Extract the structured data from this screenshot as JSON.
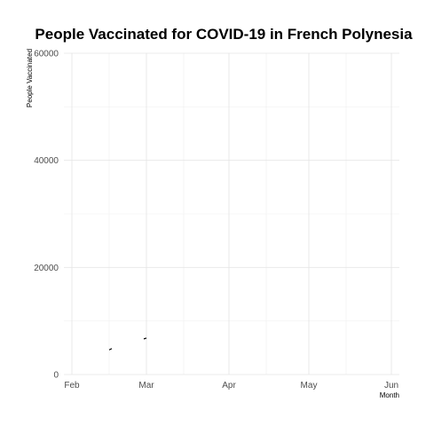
{
  "chart_data": {
    "type": "line",
    "title": "People Vaccinated for COVID-19 in French Polynesia",
    "xlabel": "Month",
    "ylabel": "People Vaccinated",
    "x_axis_type": "date",
    "xlim": [
      "2021-01-29",
      "2021-06-04"
    ],
    "ylim": [
      0,
      60000
    ],
    "x_ticks": [
      {
        "date": "2021-02-01",
        "label": "Feb"
      },
      {
        "date": "2021-03-01",
        "label": "Mar"
      },
      {
        "date": "2021-04-01",
        "label": "Apr"
      },
      {
        "date": "2021-05-01",
        "label": "May"
      },
      {
        "date": "2021-06-01",
        "label": "Jun"
      }
    ],
    "x_minor_ticks": [
      "2021-02-15",
      "2021-03-15",
      "2021-04-15",
      "2021-05-15"
    ],
    "y_ticks": [
      0,
      20000,
      40000,
      60000
    ],
    "y_minor_ticks": [
      10000,
      30000,
      50000
    ],
    "grid": true,
    "legend": "none",
    "series": [
      {
        "color": "#000000",
        "segments": [
          [
            {
              "x": "2021-02-15",
              "y": 4600
            },
            {
              "x": "2021-02-16",
              "y": 4850
            }
          ],
          [
            {
              "x": "2021-02-28",
              "y": 6650
            },
            {
              "x": "2021-03-01",
              "y": 6800
            }
          ]
        ]
      }
    ]
  }
}
